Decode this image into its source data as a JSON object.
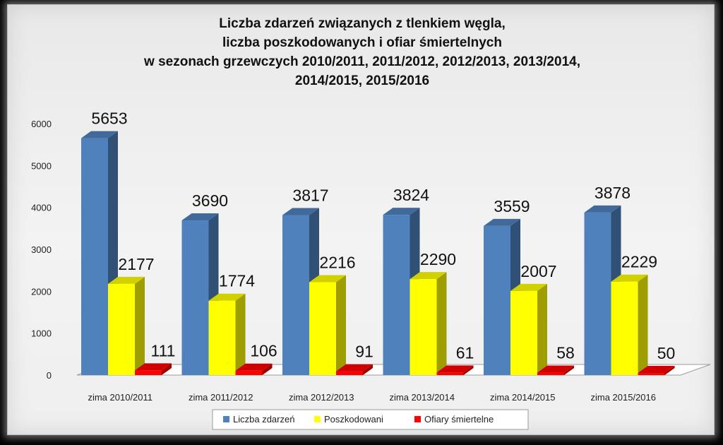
{
  "chart_data": {
    "type": "bar",
    "title_lines": [
      "Liczba zdarzeń związanych z tlenkiem węgla,",
      "liczba poszkodowanych i ofiar śmiertelnych",
      "w sezonach grzewczych 2010/2011, 2011/2012, 2012/2013, 2013/2014,",
      "2014/2015, 2015/2016"
    ],
    "categories": [
      "zima 2010/2011",
      "zima 2011/2012",
      "zima 2012/2013",
      "zima 2013/2014",
      "zima 2014/2015",
      "zima 2015/2016"
    ],
    "series": [
      {
        "name": "Liczba zdarzeń",
        "color": "#4f81bd",
        "values": [
          5653,
          3690,
          3817,
          3824,
          3559,
          3878
        ]
      },
      {
        "name": "Poszkodowani",
        "color": "#ffff00",
        "values": [
          2177,
          1774,
          2216,
          2290,
          2007,
          2229
        ]
      },
      {
        "name": "Ofiary śmiertelne",
        "color": "#ff0000",
        "values": [
          111,
          106,
          91,
          61,
          58,
          50
        ]
      }
    ],
    "ylim": [
      0,
      6000
    ],
    "yticks": [
      0,
      1000,
      2000,
      3000,
      4000,
      5000,
      6000
    ],
    "grid": false,
    "legend_position": "bottom",
    "style": "3d-clustered-column"
  }
}
